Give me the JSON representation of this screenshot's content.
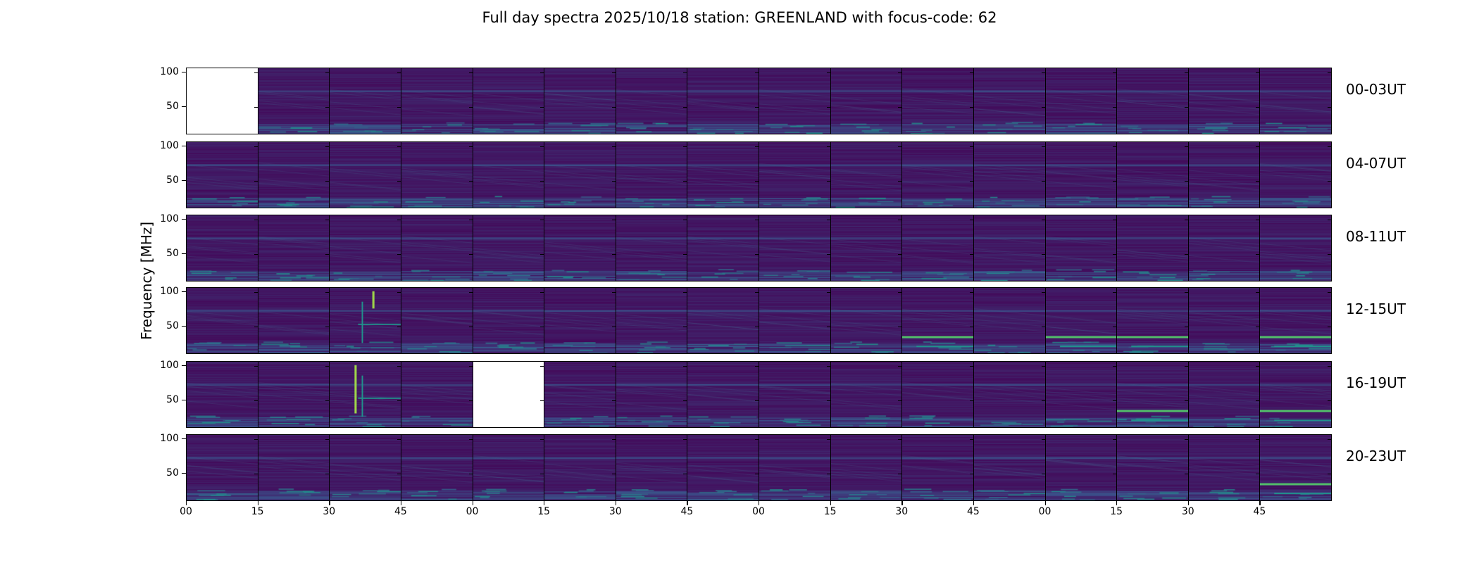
{
  "chart_data": {
    "type": "heatmap",
    "title": "Full day spectra 2025/10/18 station: GREENLAND with focus-code: 62",
    "ylabel": "Frequency [MHz]",
    "xlabel": "",
    "ylim": [
      9,
      106
    ],
    "yticks": [
      "50",
      "100"
    ],
    "yticks_values": [
      50,
      100
    ],
    "xtick_labels": [
      "00",
      "15",
      "30",
      "45",
      "00",
      "15",
      "30",
      "45",
      "00",
      "15",
      "30",
      "45",
      "00",
      "15",
      "30",
      "45"
    ],
    "colormap": "viridis",
    "rows": [
      {
        "label": "00-03UT",
        "missing_panels": [
          0
        ],
        "bright_panels": []
      },
      {
        "label": "04-07UT",
        "missing_panels": [],
        "bright_panels": []
      },
      {
        "label": "08-11UT",
        "missing_panels": [],
        "bright_panels": []
      },
      {
        "label": "12-15UT",
        "missing_panels": [],
        "bright_panels": [
          2,
          10,
          12,
          13,
          15
        ]
      },
      {
        "label": "16-19UT",
        "missing_panels": [
          4
        ],
        "bright_panels": [
          2,
          13,
          15
        ]
      },
      {
        "label": "20-23UT",
        "missing_panels": [],
        "bright_panels": [
          15
        ]
      }
    ],
    "panels_per_row": 16,
    "grid": false
  }
}
